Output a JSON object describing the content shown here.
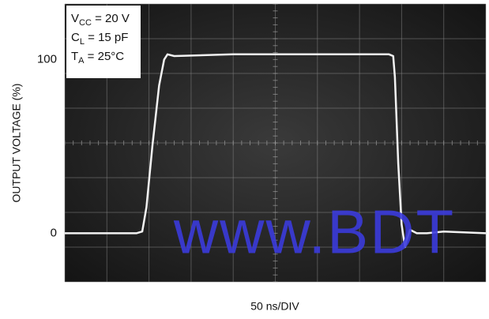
{
  "chart_data": {
    "type": "line",
    "xlabel": "50 ns/DIV",
    "ylabel": "OUTPUT VOLTAGE (%)",
    "xlim": [
      0,
      500
    ],
    "ylim": [
      -28,
      132
    ],
    "yticks": [
      0,
      100
    ],
    "x": [
      0,
      85,
      92,
      97,
      104,
      112,
      118,
      122,
      130,
      200,
      300,
      385,
      390,
      392,
      396,
      400,
      404,
      406,
      410,
      418,
      430,
      450,
      500
    ],
    "series": [
      {
        "color": "#f2f2f2",
        "values": [
          0,
          0,
          1,
          15,
          50,
          85,
          100,
          103,
          102,
          103,
          103,
          103,
          102,
          90,
          40,
          5,
          -8,
          -4,
          2,
          0,
          0,
          1,
          0
        ]
      }
    ],
    "annotations": [
      {
        "main": "V",
        "sub": "CC",
        "rest": " = 20 V"
      },
      {
        "main": "C",
        "sub": "L",
        "rest": " = 15 pF"
      },
      {
        "main": "T",
        "sub": "A",
        "rest": " = 25°C"
      }
    ],
    "watermark": "www.BDT"
  }
}
